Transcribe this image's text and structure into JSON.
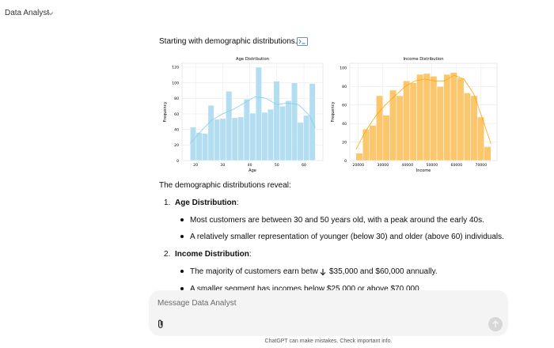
{
  "header": {
    "title": "Data Analyst"
  },
  "message": {
    "intro": "Starting with demographic distributions.",
    "chart_data": [
      {
        "type": "histogram",
        "title": "Age Distribution",
        "x_label": "Age",
        "y_label": "Frequency",
        "color": "#b3def2",
        "line_color": "#87ceeb",
        "bins": [
          18,
          20.2,
          22.4,
          24.6,
          26.8,
          29,
          31.2,
          33.4,
          35.6,
          37.8,
          40,
          42.2,
          44.4,
          46.6,
          48.8,
          51,
          53.2,
          55.4,
          57.6,
          59.8,
          62,
          64.2
        ],
        "counts": [
          43,
          36,
          35,
          71,
          53,
          54,
          89,
          55,
          56,
          79,
          61,
          120,
          62,
          66,
          102,
          70,
          77,
          100,
          49,
          58,
          99
        ],
        "kde": {
          "x": [
            18,
            22,
            26,
            30,
            34,
            38,
            42,
            46,
            50,
            54,
            58,
            62,
            64.2
          ],
          "y": [
            22,
            38,
            52,
            60,
            66,
            74,
            82,
            80,
            72,
            74,
            72,
            58,
            42
          ]
        },
        "xlim": [
          15,
          67
        ],
        "ylim": [
          0,
          125
        ],
        "xticks": [
          20,
          30,
          40,
          50,
          60
        ],
        "yticks": [
          0,
          20,
          40,
          60,
          80,
          100,
          120
        ],
        "grid": true
      },
      {
        "type": "histogram",
        "title": "Income Distribution",
        "x_label": "Income",
        "y_label": "Frequency",
        "color": "#fcc66c",
        "line_color": "#ffa500",
        "bins": [
          19000,
          21750,
          24500,
          27250,
          30000,
          32750,
          35500,
          38250,
          41000,
          43750,
          46500,
          49250,
          52000,
          54750,
          57500,
          60250,
          63000,
          65750,
          68500,
          71250,
          74000
        ],
        "counts": [
          8,
          34,
          38,
          70,
          49,
          76,
          70,
          86,
          84,
          93,
          94,
          91,
          80,
          93,
          95,
          89,
          73,
          70,
          47,
          15
        ],
        "kde": {
          "x": [
            19000,
            23000,
            27000,
            31000,
            35000,
            39000,
            43000,
            47000,
            51000,
            55000,
            59000,
            63000,
            67000,
            71000,
            74000
          ],
          "y": [
            12,
            32,
            48,
            60,
            70,
            80,
            86,
            88,
            86,
            86,
            92,
            88,
            72,
            42,
            18
          ]
        },
        "xlim": [
          16500,
          76500
        ],
        "ylim": [
          0,
          105
        ],
        "xticks": [
          20000,
          30000,
          40000,
          50000,
          60000,
          70000
        ],
        "yticks": [
          0,
          20,
          40,
          60,
          80,
          100
        ],
        "grid": true
      }
    ],
    "summary": "The demographic distributions reveal:",
    "items": [
      {
        "heading": "Age Distribution",
        "suffix": ":",
        "bullets": [
          "Most customers are between 30 and 50 years old, with a peak around the early 40s.",
          "A relatively smaller representation of younger (below 30) and older (above 60) individuals."
        ]
      },
      {
        "heading": "Income Distribution",
        "suffix": ":",
        "bullets": [
          {
            "text_before": "The majority of customers earn betw",
            "text_after": "$35,000 and $60,000 annually."
          },
          "A smaller segment has incomes below $25,000 or above $70,000."
        ]
      }
    ]
  },
  "composer": {
    "placeholder": "Message Data Analyst"
  },
  "footer": {
    "disclaimer": "ChatGPT can make mistakes. Check important info."
  }
}
